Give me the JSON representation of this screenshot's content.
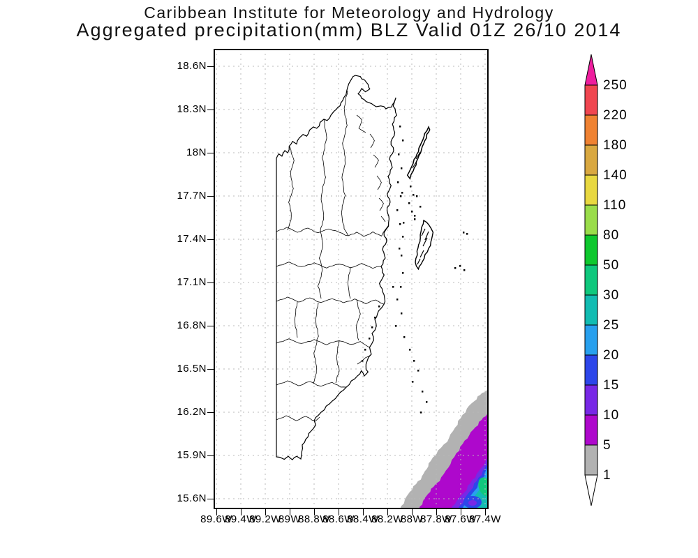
{
  "header": {
    "line1": "Caribbean Institute for Meteorology and Hydrology",
    "line2": "Aggregated precipitation(mm) BLZ Valid 01Z 26/10 2014"
  },
  "chart_data": {
    "type": "map",
    "subtype": "filled-contour precipitation analysis over coastline map",
    "title": "Caribbean Institute for Meteorology and Hydrology",
    "subtitle": "Aggregated precipitation(mm) BLZ Valid 01Z 26/10 2014",
    "region": "Belize (BLZ) with offshore cayes (Ambergris Caye, Turneffe Atoll, Lighthouse Reef)",
    "valid_time": "01Z 26/10 2014",
    "units": "mm",
    "lat_tick_labels": [
      "18.6N",
      "18.3N",
      "18N",
      "17.7N",
      "17.4N",
      "17.1N",
      "16.8N",
      "16.5N",
      "16.2N",
      "15.9N",
      "15.6N"
    ],
    "lon_tick_labels": [
      "89.6W",
      "89.4W",
      "89.2W",
      "89W",
      "88.8W",
      "88.6W",
      "88.4W",
      "88.2W",
      "88W",
      "87.8W",
      "87.6W",
      "87.4W"
    ],
    "lat_step_deg": 0.3,
    "lon_step_deg": 0.2,
    "grid": "dashed light-gray graticule on",
    "legend_position": "right vertical colorbar with pointed over/under arrows",
    "colorbar": {
      "levels": [
        1,
        5,
        10,
        15,
        20,
        25,
        30,
        50,
        80,
        110,
        140,
        180,
        220,
        250
      ],
      "band_colors": [
        "#b2b2b2",
        "#ae08cc",
        "#7828e6",
        "#2d46ea",
        "#28a0ee",
        "#12bcb2",
        "#0fc87d",
        "#0ec82e",
        "#9add4a",
        "#e8d840",
        "#d9a840",
        "#ef8232",
        "#f04650"
      ],
      "above_color": "#ee1e9e",
      "below_color": "#ffffff"
    },
    "shaded_feature": {
      "description": "Rain area confined to the offshore Caribbean waters in the bottom-right (southeast) corner of the map; nested bands increase toward the corner",
      "bands_mm_outer_to_inner": [
        1,
        5,
        10,
        15,
        20,
        25,
        30
      ],
      "max_band_mm": "30-50",
      "land_values": "no shading (< 1 mm) over Belize mainland"
    }
  }
}
